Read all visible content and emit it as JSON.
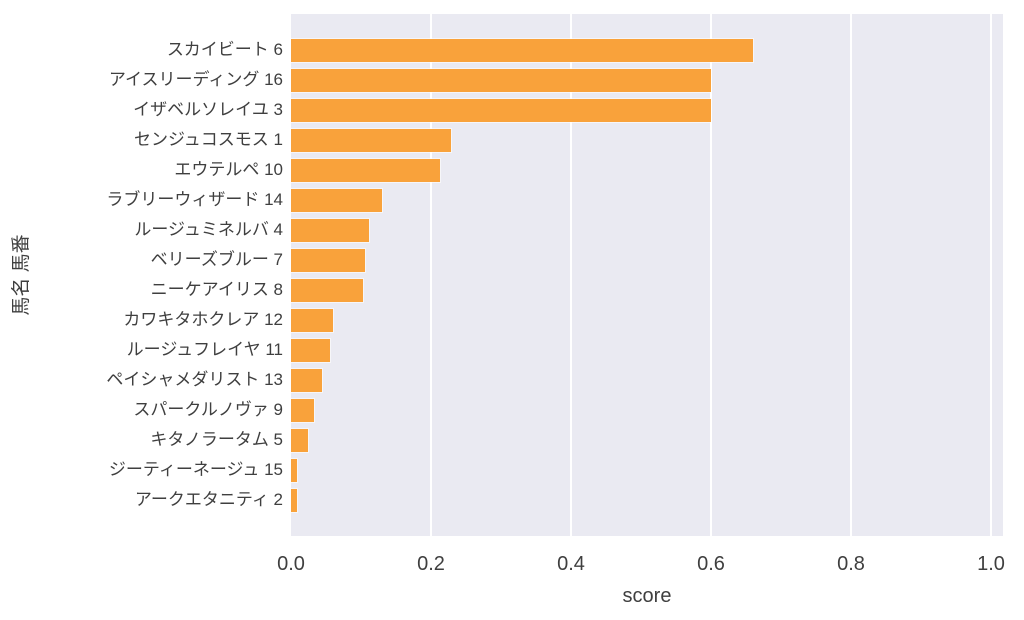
{
  "chart_data": {
    "type": "bar",
    "orientation": "horizontal",
    "title": "",
    "xlabel": "score",
    "ylabel": "馬名 馬番",
    "categories": [
      "スカイビート 6",
      "アイスリーディング 16",
      "イザベルソレイユ 3",
      "センジュコスモス 1",
      "エウテルペ 10",
      "ラブリーウィザード 14",
      "ルージュミネルバ 4",
      "ベリーズブルー 7",
      "ニーケアイリス 8",
      "カワキタホクレア 12",
      "ルージュフレイヤ 11",
      "ペイシャメダリスト 13",
      "スパークルノヴァ 9",
      "キタノラータム 5",
      "ジーティーネージュ 15",
      "アークエタニティ 2"
    ],
    "values": [
      0.66,
      0.6,
      0.6,
      0.228,
      0.213,
      0.13,
      0.111,
      0.106,
      0.103,
      0.06,
      0.056,
      0.044,
      0.033,
      0.024,
      0.008,
      0.008
    ],
    "xticks": [
      0.0,
      0.2,
      0.4,
      0.6,
      0.8,
      1.0
    ],
    "xtick_labels": [
      "0.0",
      "0.2",
      "0.4",
      "0.6",
      "0.8",
      "1.0"
    ],
    "xlim": [
      0,
      1.017
    ],
    "grid": true,
    "legend_position": "none",
    "colors": {
      "bar": "#f9a23b",
      "plot_background": "#eaeaf2",
      "gridline": "#ffffff",
      "text": "#3f3f3f",
      "figure_background": "#ffffff"
    }
  }
}
